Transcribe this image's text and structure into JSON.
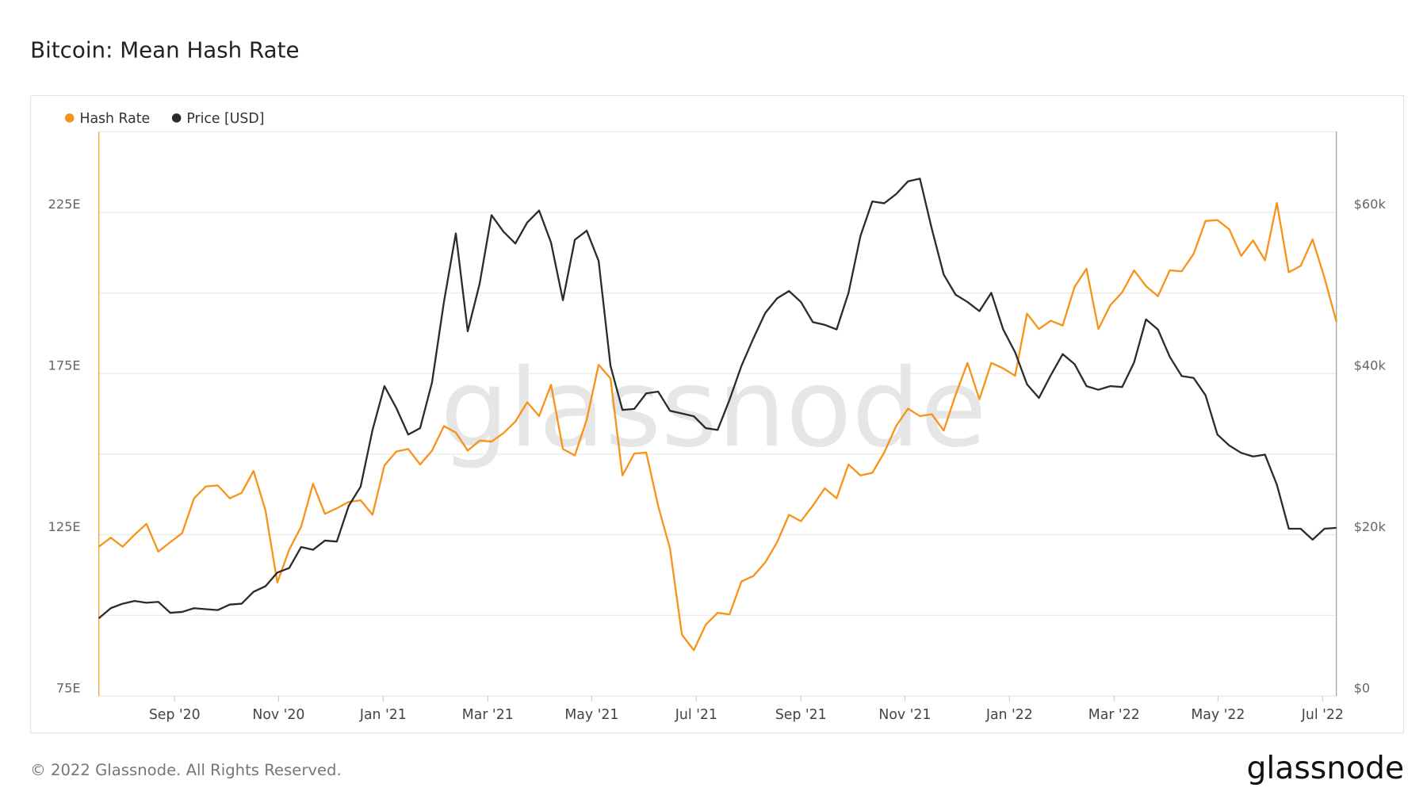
{
  "chart_data": {
    "type": "line",
    "title": "Bitcoin: Mean Hash Rate",
    "footer": "© 2022 Glassnode. All Rights Reserved.",
    "logo": "glassnode",
    "watermark": "glassnode",
    "x": [
      2020.546,
      2020.565,
      2020.584,
      2020.603,
      2020.622,
      2020.641,
      2020.66,
      2020.679,
      2020.698,
      2020.717,
      2020.736,
      2020.755,
      2020.774,
      2020.793,
      2020.812,
      2020.831,
      2020.85,
      2020.869,
      2020.888,
      2020.907,
      2020.926,
      2020.945,
      2020.964,
      2020.983,
      2021.002,
      2021.021,
      2021.04,
      2021.059,
      2021.078,
      2021.097,
      2021.116,
      2021.135,
      2021.154,
      2021.173,
      2021.192,
      2021.211,
      2021.23,
      2021.249,
      2021.268,
      2021.287,
      2021.306,
      2021.325,
      2021.344,
      2021.363,
      2021.382,
      2021.401,
      2021.42,
      2021.439,
      2021.458,
      2021.477,
      2021.496,
      2021.515,
      2021.534,
      2021.553,
      2021.572,
      2021.591,
      2021.61,
      2021.629,
      2021.648,
      2021.667,
      2021.686,
      2021.705,
      2021.724,
      2021.743,
      2021.762,
      2021.781,
      2021.8,
      2021.819,
      2021.838,
      2021.857,
      2021.876,
      2021.895,
      2021.914,
      2021.933,
      2021.952,
      2021.971,
      2021.99,
      2022.009,
      2022.028,
      2022.047,
      2022.066,
      2022.085,
      2022.104,
      2022.123,
      2022.142,
      2022.161,
      2022.18,
      2022.199,
      2022.218,
      2022.237,
      2022.256,
      2022.275,
      2022.294,
      2022.313,
      2022.332,
      2022.351,
      2022.37,
      2022.389,
      2022.408,
      2022.427,
      2022.446,
      2022.465,
      2022.484,
      2022.503,
      2022.522
    ],
    "series": [
      {
        "name": "Hash Rate",
        "color": "#f7931a",
        "axis": "y",
        "values": [
          121.3,
          124.1,
          121.3,
          125.0,
          128.4,
          119.8,
          122.7,
          125.5,
          136.3,
          140.0,
          140.3,
          136.3,
          138.0,
          144.8,
          132.6,
          110.2,
          120.4,
          127.5,
          140.8,
          131.5,
          133.2,
          135.2,
          135.7,
          131.2,
          146.5,
          150.8,
          151.6,
          146.8,
          151.1,
          158.7,
          156.7,
          151.1,
          154.2,
          153.9,
          156.5,
          160.1,
          166.1,
          161.8,
          171.5,
          151.6,
          149.6,
          160.7,
          177.7,
          173.5,
          143.4,
          150.2,
          150.5,
          134.0,
          120.7,
          94.0,
          89.2,
          97.1,
          100.8,
          100.3,
          110.5,
          112.2,
          116.4,
          122.7,
          131.2,
          129.2,
          134.0,
          139.4,
          136.3,
          146.8,
          143.4,
          144.2,
          150.5,
          158.7,
          164.1,
          161.8,
          162.4,
          157.3,
          168.4,
          178.3,
          167.0,
          178.3,
          176.6,
          174.3,
          193.6,
          188.8,
          191.4,
          189.9,
          201.9,
          207.5,
          188.8,
          196.2,
          200.2,
          207.0,
          202.1,
          199.0,
          207.0,
          206.7,
          212.1,
          222.3,
          222.6,
          219.7,
          211.5,
          216.3,
          210.1,
          227.9,
          206.4,
          208.4,
          216.6,
          204.7,
          191.1
        ]
      },
      {
        "name": "Price [USD]",
        "color": "#2b2b2b",
        "axis": "y2",
        "values": [
          9640,
          10890,
          11450,
          11790,
          11570,
          11680,
          10320,
          10430,
          10890,
          10770,
          10660,
          11340,
          11450,
          12930,
          13610,
          15310,
          15880,
          18480,
          18140,
          19280,
          19160,
          23590,
          25970,
          33000,
          38440,
          35720,
          32430,
          33230,
          38900,
          48880,
          57380,
          45250,
          51140,
          59650,
          57610,
          56130,
          58740,
          60220,
          56250,
          49100,
          56590,
          57720,
          53980,
          40940,
          35490,
          35610,
          37540,
          37760,
          35380,
          35040,
          34700,
          33230,
          33000,
          36740,
          40940,
          44340,
          47510,
          49330,
          50240,
          48880,
          46380,
          46040,
          45470,
          50010,
          57040,
          61350,
          61120,
          62260,
          63840,
          64180,
          57950,
          52280,
          49780,
          48880,
          47740,
          50010,
          45470,
          42640,
          38670,
          36970,
          39800,
          42410,
          41160,
          38440,
          37990,
          38440,
          38330,
          41390,
          46720,
          45470,
          42070,
          39690,
          39460,
          37310,
          32430,
          31070,
          30160,
          29710,
          29940,
          26200,
          20750,
          20750,
          19390,
          20750,
          20860
        ]
      }
    ],
    "xlim": [
      2020.546,
      2022.522
    ],
    "xticks": [
      {
        "value": 2020.667,
        "label": "Sep '20"
      },
      {
        "value": 2020.833,
        "label": "Nov '20"
      },
      {
        "value": 2021,
        "label": "Jan '21"
      },
      {
        "value": 2021.167,
        "label": "Mar '21"
      },
      {
        "value": 2021.333,
        "label": "May '21"
      },
      {
        "value": 2021.5,
        "label": "Jul '21"
      },
      {
        "value": 2021.667,
        "label": "Sep '21"
      },
      {
        "value": 2021.833,
        "label": "Nov '21"
      },
      {
        "value": 2022,
        "label": "Jan '22"
      },
      {
        "value": 2022.167,
        "label": "Mar '22"
      },
      {
        "value": 2022.333,
        "label": "May '22"
      },
      {
        "value": 2022.5,
        "label": "Jul '22"
      }
    ],
    "ylim": [
      75,
      250
    ],
    "yticks": [
      {
        "value": 75,
        "label": "75E"
      },
      {
        "value": 125,
        "label": "125E"
      },
      {
        "value": 175,
        "label": "175E"
      },
      {
        "value": 225,
        "label": "225E"
      }
    ],
    "grid_lines": [
      100,
      150,
      200
    ],
    "y2lim": [
      0,
      70000
    ],
    "y2ticks": [
      {
        "value": 0,
        "label": "$0"
      },
      {
        "value": 20000,
        "label": "$20k"
      },
      {
        "value": 40000,
        "label": "$40k"
      },
      {
        "value": 60000,
        "label": "$60k"
      }
    ],
    "grid": true,
    "legend": "top-left"
  }
}
